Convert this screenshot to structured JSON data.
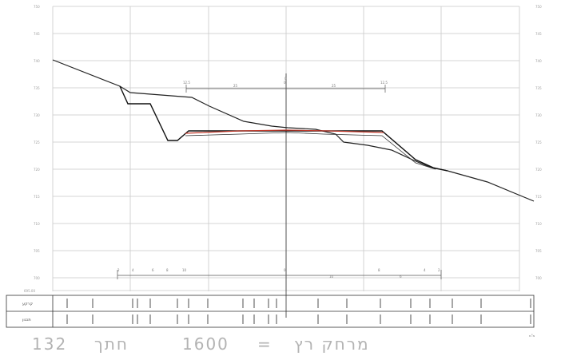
{
  "drawing": {
    "title": {
      "label": "מרחק רץ",
      "equals": "=",
      "distance": "1600",
      "section_word": "חתך",
      "section_number": "132"
    },
    "elevation_labels_left": [
      "750",
      "745",
      "740",
      "735",
      "730",
      "725",
      "720",
      "715",
      "710",
      "705",
      "700",
      "695"
    ],
    "elevation_labels_right": [
      "750",
      "745",
      "740",
      "735",
      "730",
      "725",
      "720",
      "715",
      "710",
      "705",
      "700",
      "695"
    ],
    "base_label": "695.00",
    "axis_label_right": "מ\"מ",
    "table_rows": [
      {
        "label": "קרקע"
      },
      {
        "label": "תכנון"
      }
    ],
    "centerline_label": "0",
    "upper_dims": [
      "12.5",
      "25",
      "0",
      "25",
      "12.5"
    ],
    "lower_dims": [
      "2",
      "4",
      "6",
      "8",
      "10",
      "0",
      "10",
      "8",
      "6",
      "4",
      "2"
    ],
    "colors": {
      "ground_line": "#222222",
      "design_line": "#333333",
      "red_line": "#c0392b",
      "grid": "#bfbfbf"
    }
  }
}
